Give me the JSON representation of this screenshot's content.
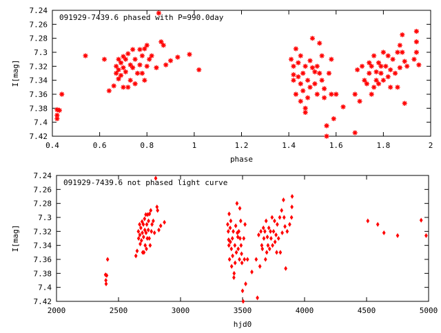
{
  "chart_data": [
    {
      "type": "scatter",
      "title": "091929-7439.6 phased with P=990.0day",
      "xlabel": "phase",
      "ylabel": "I[mag]",
      "xlim": [
        0.4,
        2.0
      ],
      "ylim": [
        7.24,
        7.42
      ],
      "y_inverted": true,
      "grid": false,
      "marker": "star",
      "color": "#ff0000",
      "x_ticks": [
        "0.4",
        "0.6",
        "0.8",
        "1",
        "1.2",
        "1.4",
        "1.6",
        "1.8",
        "2"
      ],
      "y_ticks": [
        "7.24",
        "7.26",
        "7.28",
        "7.3",
        "7.32",
        "7.34",
        "7.36",
        "7.38",
        "7.4",
        "7.42"
      ],
      "points": [
        [
          0.42,
          7.382
        ],
        [
          0.42,
          7.39
        ],
        [
          0.42,
          7.395
        ],
        [
          0.43,
          7.383
        ],
        [
          0.44,
          7.36
        ],
        [
          0.54,
          7.305
        ],
        [
          0.62,
          7.31
        ],
        [
          0.64,
          7.355
        ],
        [
          0.66,
          7.348
        ],
        [
          0.67,
          7.32
        ],
        [
          0.67,
          7.33
        ],
        [
          0.68,
          7.31
        ],
        [
          0.68,
          7.325
        ],
        [
          0.68,
          7.338
        ],
        [
          0.69,
          7.315
        ],
        [
          0.69,
          7.333
        ],
        [
          0.7,
          7.306
        ],
        [
          0.7,
          7.322
        ],
        [
          0.7,
          7.35
        ],
        [
          0.71,
          7.31
        ],
        [
          0.71,
          7.328
        ],
        [
          0.72,
          7.35
        ],
        [
          0.72,
          7.302
        ],
        [
          0.73,
          7.318
        ],
        [
          0.73,
          7.34
        ],
        [
          0.74,
          7.296
        ],
        [
          0.74,
          7.322
        ],
        [
          0.75,
          7.345
        ],
        [
          0.75,
          7.31
        ],
        [
          0.76,
          7.33
        ],
        [
          0.77,
          7.296
        ],
        [
          0.77,
          7.318
        ],
        [
          0.78,
          7.305
        ],
        [
          0.78,
          7.33
        ],
        [
          0.79,
          7.295
        ],
        [
          0.79,
          7.34
        ],
        [
          0.8,
          7.29
        ],
        [
          0.8,
          7.32
        ],
        [
          0.81,
          7.31
        ],
        [
          0.82,
          7.305
        ],
        [
          0.84,
          7.322
        ],
        [
          0.85,
          7.244
        ],
        [
          0.86,
          7.285
        ],
        [
          0.87,
          7.29
        ],
        [
          0.88,
          7.318
        ],
        [
          0.9,
          7.312
        ],
        [
          0.93,
          7.307
        ],
        [
          0.98,
          7.303
        ],
        [
          1.02,
          7.325
        ],
        [
          1.41,
          7.31
        ],
        [
          1.42,
          7.32
        ],
        [
          1.42,
          7.332
        ],
        [
          1.42,
          7.34
        ],
        [
          1.43,
          7.295
        ],
        [
          1.43,
          7.36
        ],
        [
          1.44,
          7.315
        ],
        [
          1.44,
          7.335
        ],
        [
          1.45,
          7.305
        ],
        [
          1.45,
          7.345
        ],
        [
          1.45,
          7.37
        ],
        [
          1.46,
          7.33
        ],
        [
          1.46,
          7.355
        ],
        [
          1.47,
          7.32
        ],
        [
          1.47,
          7.386
        ],
        [
          1.47,
          7.38
        ],
        [
          1.48,
          7.34
        ],
        [
          1.48,
          7.365
        ],
        [
          1.49,
          7.312
        ],
        [
          1.49,
          7.35
        ],
        [
          1.5,
          7.28
        ],
        [
          1.5,
          7.322
        ],
        [
          1.51,
          7.328
        ],
        [
          1.51,
          7.345
        ],
        [
          1.52,
          7.32
        ],
        [
          1.52,
          7.36
        ],
        [
          1.53,
          7.287
        ],
        [
          1.53,
          7.33
        ],
        [
          1.54,
          7.305
        ],
        [
          1.54,
          7.34
        ],
        [
          1.55,
          7.352
        ],
        [
          1.55,
          7.365
        ],
        [
          1.56,
          7.405
        ],
        [
          1.56,
          7.42
        ],
        [
          1.57,
          7.33
        ],
        [
          1.58,
          7.36
        ],
        [
          1.58,
          7.31
        ],
        [
          1.59,
          7.395
        ],
        [
          1.6,
          7.36
        ],
        [
          1.63,
          7.378
        ],
        [
          1.68,
          7.36
        ],
        [
          1.68,
          7.415
        ],
        [
          1.69,
          7.325
        ],
        [
          1.7,
          7.37
        ],
        [
          1.71,
          7.32
        ],
        [
          1.72,
          7.34
        ],
        [
          1.73,
          7.345
        ],
        [
          1.74,
          7.315
        ],
        [
          1.74,
          7.33
        ],
        [
          1.75,
          7.32
        ],
        [
          1.75,
          7.36
        ],
        [
          1.76,
          7.305
        ],
        [
          1.76,
          7.35
        ],
        [
          1.77,
          7.328
        ],
        [
          1.77,
          7.34
        ],
        [
          1.78,
          7.315
        ],
        [
          1.78,
          7.345
        ],
        [
          1.79,
          7.32
        ],
        [
          1.79,
          7.33
        ],
        [
          1.8,
          7.3
        ],
        [
          1.8,
          7.34
        ],
        [
          1.81,
          7.32
        ],
        [
          1.82,
          7.305
        ],
        [
          1.82,
          7.335
        ],
        [
          1.83,
          7.325
        ],
        [
          1.83,
          7.35
        ],
        [
          1.84,
          7.31
        ],
        [
          1.85,
          7.33
        ],
        [
          1.86,
          7.3
        ],
        [
          1.86,
          7.35
        ],
        [
          1.87,
          7.29
        ],
        [
          1.87,
          7.322
        ],
        [
          1.88,
          7.275
        ],
        [
          1.88,
          7.3
        ],
        [
          1.89,
          7.313
        ],
        [
          1.89,
          7.373
        ],
        [
          1.9,
          7.32
        ],
        [
          1.93,
          7.31
        ],
        [
          1.94,
          7.3
        ],
        [
          1.94,
          7.285
        ],
        [
          1.94,
          7.27
        ],
        [
          1.95,
          7.318
        ]
      ]
    },
    {
      "type": "scatter",
      "title": "091929-7439.6 not phased light curve",
      "xlabel": "hjd0",
      "ylabel": "I[mag]",
      "xlim": [
        2000,
        5000
      ],
      "ylim": [
        7.24,
        7.42
      ],
      "y_inverted": true,
      "grid": false,
      "marker": "diamond",
      "color": "#ff0000",
      "x_ticks": [
        "2000",
        "2500",
        "3000",
        "3500",
        "4000",
        "4500",
        "5000"
      ],
      "y_ticks": [
        "7.24",
        "7.26",
        "7.28",
        "7.3",
        "7.32",
        "7.34",
        "7.36",
        "7.38",
        "7.4",
        "7.42"
      ],
      "points": [
        [
          2395,
          7.382
        ],
        [
          2398,
          7.39
        ],
        [
          2400,
          7.395
        ],
        [
          2405,
          7.383
        ],
        [
          2412,
          7.36
        ],
        [
          2640,
          7.355
        ],
        [
          2650,
          7.348
        ],
        [
          2660,
          7.32
        ],
        [
          2662,
          7.33
        ],
        [
          2670,
          7.31
        ],
        [
          2672,
          7.325
        ],
        [
          2675,
          7.338
        ],
        [
          2680,
          7.315
        ],
        [
          2685,
          7.333
        ],
        [
          2690,
          7.306
        ],
        [
          2692,
          7.322
        ],
        [
          2695,
          7.35
        ],
        [
          2700,
          7.31
        ],
        [
          2702,
          7.328
        ],
        [
          2705,
          7.35
        ],
        [
          2710,
          7.302
        ],
        [
          2712,
          7.318
        ],
        [
          2715,
          7.34
        ],
        [
          2720,
          7.296
        ],
        [
          2722,
          7.322
        ],
        [
          2725,
          7.345
        ],
        [
          2728,
          7.31
        ],
        [
          2732,
          7.33
        ],
        [
          2735,
          7.296
        ],
        [
          2740,
          7.318
        ],
        [
          2742,
          7.305
        ],
        [
          2748,
          7.33
        ],
        [
          2750,
          7.295
        ],
        [
          2755,
          7.34
        ],
        [
          2760,
          7.29
        ],
        [
          2765,
          7.32
        ],
        [
          2770,
          7.31
        ],
        [
          2780,
          7.305
        ],
        [
          2790,
          7.322
        ],
        [
          2800,
          7.244
        ],
        [
          2810,
          7.285
        ],
        [
          2815,
          7.29
        ],
        [
          2825,
          7.318
        ],
        [
          2840,
          7.312
        ],
        [
          2870,
          7.307
        ],
        [
          3380,
          7.31
        ],
        [
          3385,
          7.32
        ],
        [
          3388,
          7.332
        ],
        [
          3390,
          7.34
        ],
        [
          3392,
          7.295
        ],
        [
          3395,
          7.36
        ],
        [
          3400,
          7.315
        ],
        [
          3402,
          7.335
        ],
        [
          3405,
          7.305
        ],
        [
          3410,
          7.345
        ],
        [
          3412,
          7.37
        ],
        [
          3418,
          7.33
        ],
        [
          3420,
          7.355
        ],
        [
          3425,
          7.32
        ],
        [
          3430,
          7.386
        ],
        [
          3432,
          7.38
        ],
        [
          3438,
          7.34
        ],
        [
          3440,
          7.365
        ],
        [
          3445,
          7.312
        ],
        [
          3450,
          7.35
        ],
        [
          3455,
          7.28
        ],
        [
          3458,
          7.322
        ],
        [
          3462,
          7.328
        ],
        [
          3465,
          7.345
        ],
        [
          3470,
          7.32
        ],
        [
          3475,
          7.36
        ],
        [
          3478,
          7.287
        ],
        [
          3480,
          7.33
        ],
        [
          3485,
          7.305
        ],
        [
          3488,
          7.34
        ],
        [
          3492,
          7.352
        ],
        [
          3495,
          7.365
        ],
        [
          3500,
          7.405
        ],
        [
          3505,
          7.42
        ],
        [
          3510,
          7.33
        ],
        [
          3515,
          7.36
        ],
        [
          3520,
          7.31
        ],
        [
          3525,
          7.395
        ],
        [
          3540,
          7.36
        ],
        [
          3575,
          7.378
        ],
        [
          3610,
          7.36
        ],
        [
          3620,
          7.415
        ],
        [
          3630,
          7.325
        ],
        [
          3640,
          7.37
        ],
        [
          3648,
          7.32
        ],
        [
          3655,
          7.34
        ],
        [
          3660,
          7.345
        ],
        [
          3668,
          7.315
        ],
        [
          3672,
          7.33
        ],
        [
          3680,
          7.32
        ],
        [
          3685,
          7.36
        ],
        [
          3690,
          7.305
        ],
        [
          3695,
          7.35
        ],
        [
          3700,
          7.328
        ],
        [
          3705,
          7.34
        ],
        [
          3712,
          7.315
        ],
        [
          3718,
          7.345
        ],
        [
          3725,
          7.32
        ],
        [
          3730,
          7.33
        ],
        [
          3738,
          7.3
        ],
        [
          3742,
          7.34
        ],
        [
          3750,
          7.32
        ],
        [
          3758,
          7.305
        ],
        [
          3762,
          7.335
        ],
        [
          3770,
          7.325
        ],
        [
          3775,
          7.35
        ],
        [
          3780,
          7.31
        ],
        [
          3790,
          7.33
        ],
        [
          3800,
          7.3
        ],
        [
          3805,
          7.35
        ],
        [
          3815,
          7.29
        ],
        [
          3820,
          7.322
        ],
        [
          3830,
          7.275
        ],
        [
          3835,
          7.3
        ],
        [
          3842,
          7.313
        ],
        [
          3848,
          7.373
        ],
        [
          3860,
          7.32
        ],
        [
          3880,
          7.31
        ],
        [
          3895,
          7.3
        ],
        [
          3898,
          7.285
        ],
        [
          3900,
          7.27
        ],
        [
          4510,
          7.305
        ],
        [
          4590,
          7.31
        ],
        [
          4640,
          7.322
        ],
        [
          4750,
          7.326
        ],
        [
          4940,
          7.304
        ],
        [
          4980,
          7.326
        ]
      ]
    }
  ]
}
